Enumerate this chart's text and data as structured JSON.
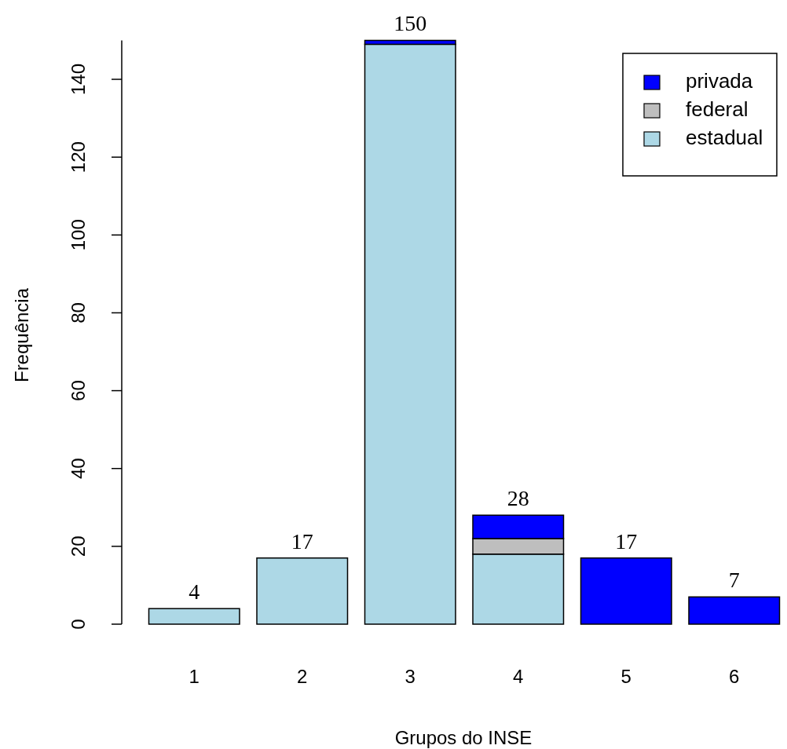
{
  "chart_data": {
    "type": "bar",
    "stacked": true,
    "xlabel": "Grupos do INSE",
    "ylabel": "Frequência",
    "categories": [
      "1",
      "2",
      "3",
      "4",
      "5",
      "6"
    ],
    "series": [
      {
        "name": "estadual",
        "color": "#add8e6",
        "values": [
          4,
          17,
          149,
          18,
          0,
          0
        ]
      },
      {
        "name": "federal",
        "color": "#bebebe",
        "values": [
          0,
          0,
          0,
          4,
          0,
          0
        ]
      },
      {
        "name": "privada",
        "color": "#0000ff",
        "values": [
          0,
          0,
          1,
          6,
          17,
          7
        ]
      }
    ],
    "totals": [
      "4",
      "17",
      "150",
      "28",
      "17",
      "7"
    ],
    "ylim": [
      0,
      150
    ],
    "yticks": [
      0,
      20,
      40,
      60,
      80,
      100,
      120,
      140
    ],
    "grid": false,
    "legend": "top right"
  }
}
